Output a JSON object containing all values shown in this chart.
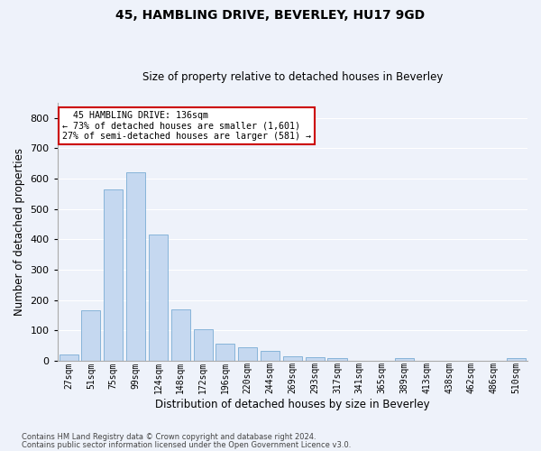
{
  "title1": "45, HAMBLING DRIVE, BEVERLEY, HU17 9GD",
  "title2": "Size of property relative to detached houses in Beverley",
  "xlabel": "Distribution of detached houses by size in Beverley",
  "ylabel": "Number of detached properties",
  "footer1": "Contains HM Land Registry data © Crown copyright and database right 2024.",
  "footer2": "Contains public sector information licensed under the Open Government Licence v3.0.",
  "annotation_line1": "  45 HAMBLING DRIVE: 136sqm",
  "annotation_line2": "← 73% of detached houses are smaller (1,601)",
  "annotation_line3": "27% of semi-detached houses are larger (581) →",
  "bar_labels": [
    "27sqm",
    "51sqm",
    "75sqm",
    "99sqm",
    "124sqm",
    "148sqm",
    "172sqm",
    "196sqm",
    "220sqm",
    "244sqm",
    "269sqm",
    "293sqm",
    "317sqm",
    "341sqm",
    "365sqm",
    "389sqm",
    "413sqm",
    "438sqm",
    "462sqm",
    "486sqm",
    "510sqm"
  ],
  "bar_values": [
    20,
    165,
    565,
    620,
    415,
    170,
    105,
    57,
    43,
    32,
    14,
    10,
    8,
    0,
    0,
    7,
    0,
    0,
    0,
    0,
    7
  ],
  "bar_color": "#c5d8f0",
  "bar_edge_color": "#7aadd4",
  "annotation_box_color": "#cc0000",
  "background_color": "#eef2fa",
  "grid_color": "#ffffff",
  "ylim": [
    0,
    850
  ],
  "yticks": [
    0,
    100,
    200,
    300,
    400,
    500,
    600,
    700,
    800
  ]
}
